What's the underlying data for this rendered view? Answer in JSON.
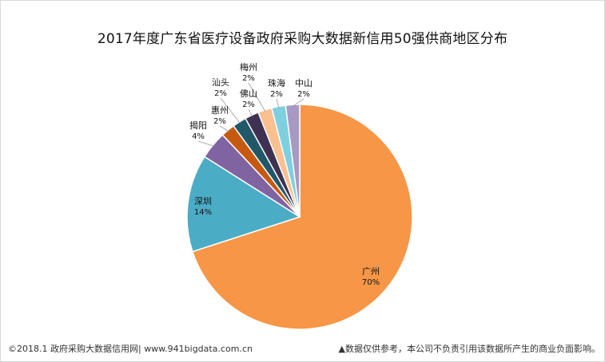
{
  "chart_data": {
    "type": "pie",
    "title": "2017年度广东省医疗设备政府采购大数据新信用50强供商地区分布",
    "slices": [
      {
        "label": "广州",
        "value": 70,
        "pct_text": "70%",
        "color": "#f79646"
      },
      {
        "label": "深圳",
        "value": 14,
        "pct_text": "14%",
        "color": "#4bacc6"
      },
      {
        "label": "揭阳",
        "value": 4,
        "pct_text": "4%",
        "color": "#8064a2"
      },
      {
        "label": "惠州",
        "value": 2,
        "pct_text": "2%",
        "color": "#c65911"
      },
      {
        "label": "汕头",
        "value": 2,
        "pct_text": "2%",
        "color": "#215868"
      },
      {
        "label": "佛山",
        "value": 2,
        "pct_text": "2%",
        "color": "#3f3151"
      },
      {
        "label": "梅州",
        "value": 2,
        "pct_text": "2%",
        "color": "#fac090"
      },
      {
        "label": "珠海",
        "value": 2,
        "pct_text": "2%",
        "color": "#7ecfe0"
      },
      {
        "label": "中山",
        "value": 2,
        "pct_text": "2%",
        "color": "#a899c4"
      }
    ]
  },
  "footer": {
    "left": "©2018.1 政府采购大数据信用网| www.941bigdata.com.cn",
    "right": "▲数据仅供参考，本公司不负责引用该数据所产生的商业负面影响。"
  }
}
